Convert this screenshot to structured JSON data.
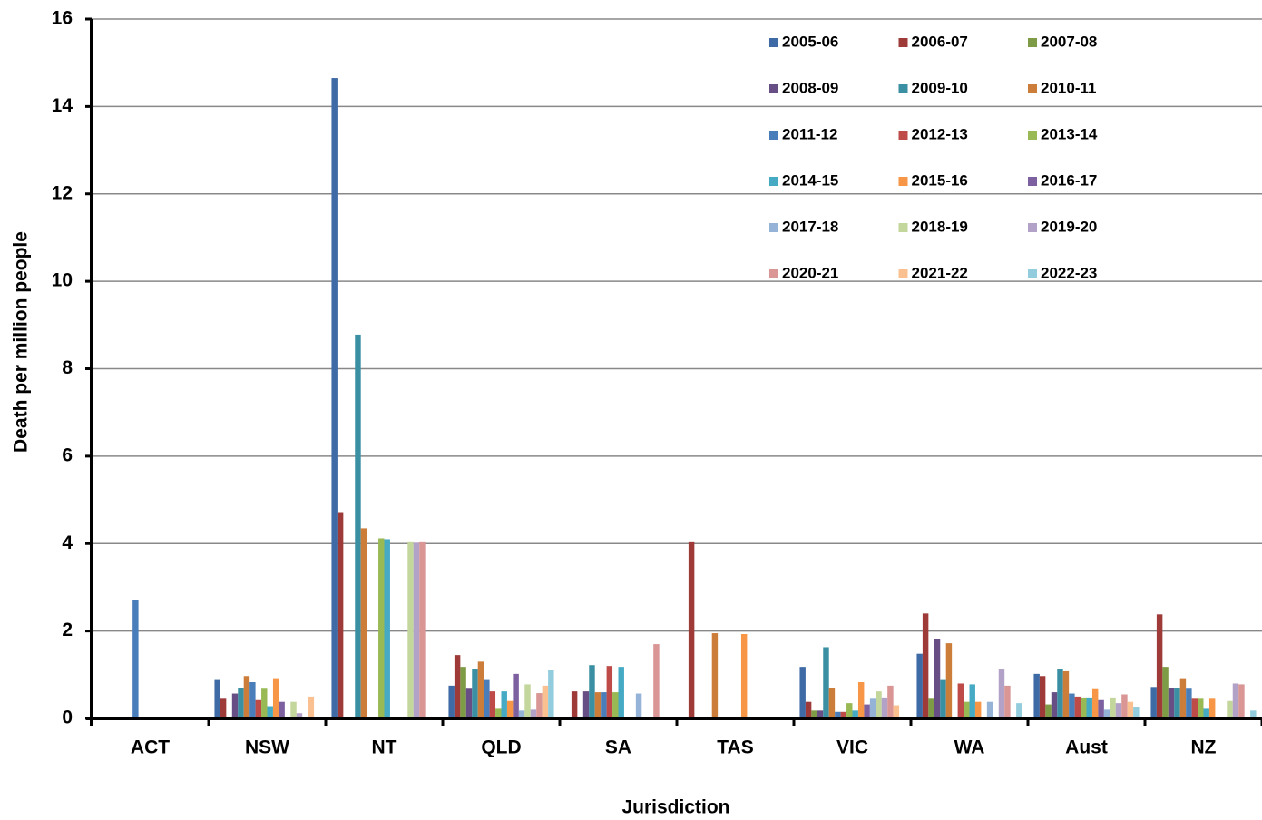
{
  "chart_data": {
    "type": "bar",
    "x_label": "Jurisdiction",
    "y_label": "Death per million people",
    "categories": [
      "ACT",
      "NSW",
      "NT",
      "QLD",
      "SA",
      "TAS",
      "VIC",
      "WA",
      "Aust",
      "NZ"
    ],
    "ylim": [
      0,
      16
    ],
    "yticks": [
      0,
      2,
      4,
      6,
      8,
      10,
      12,
      14,
      16
    ],
    "grid": true,
    "legend": "upper right",
    "series": [
      {
        "name": "2005-06",
        "color": "#3E6AA6",
        "values": [
          0,
          0.88,
          14.65,
          0.75,
          0,
          0,
          1.18,
          1.48,
          1.02,
          0.72
        ]
      },
      {
        "name": "2006-07",
        "color": "#9E3B39",
        "values": [
          0,
          0.45,
          4.7,
          1.45,
          0.62,
          4.05,
          0.38,
          2.4,
          0.97,
          2.38
        ]
      },
      {
        "name": "2007-08",
        "color": "#7E9B45",
        "values": [
          0,
          0,
          0,
          1.18,
          0,
          0,
          0.18,
          0.45,
          0.32,
          1.18
        ]
      },
      {
        "name": "2008-09",
        "color": "#674F85",
        "values": [
          0,
          0.57,
          0,
          0.68,
          0.62,
          0,
          0.18,
          1.82,
          0.6,
          0.7
        ]
      },
      {
        "name": "2009-10",
        "color": "#3A8FA3",
        "values": [
          0,
          0.7,
          8.78,
          1.12,
          1.22,
          0,
          1.63,
          0.88,
          1.12,
          0.7
        ]
      },
      {
        "name": "2010-11",
        "color": "#CC7D3A",
        "values": [
          0,
          0.97,
          4.35,
          1.3,
          0.6,
          1.95,
          0.7,
          1.72,
          1.08,
          0.9
        ]
      },
      {
        "name": "2011-12",
        "color": "#4A7EBB",
        "values": [
          2.7,
          0.83,
          0,
          0.88,
          0.6,
          0,
          0.15,
          0,
          0.57,
          0.68
        ]
      },
      {
        "name": "2012-13",
        "color": "#BE4B48",
        "values": [
          0,
          0.42,
          0,
          0.62,
          1.2,
          0,
          0.15,
          0.8,
          0.5,
          0.45
        ]
      },
      {
        "name": "2013-14",
        "color": "#98B954",
        "values": [
          0,
          0.68,
          4.12,
          0.22,
          0.6,
          0,
          0.35,
          0.38,
          0.48,
          0.45
        ]
      },
      {
        "name": "2014-15",
        "color": "#46AAC5",
        "values": [
          0,
          0.28,
          4.1,
          0.62,
          1.18,
          0,
          0.18,
          0.78,
          0.48,
          0.22
        ]
      },
      {
        "name": "2015-16",
        "color": "#F79646",
        "values": [
          0,
          0.9,
          0,
          0.4,
          0,
          1.93,
          0.83,
          0.38,
          0.67,
          0.45
        ]
      },
      {
        "name": "2016-17",
        "color": "#7D60A0",
        "values": [
          0,
          0.38,
          0,
          1.02,
          0,
          0,
          0.32,
          0,
          0.42,
          0
        ]
      },
      {
        "name": "2017-18",
        "color": "#95B3D7",
        "values": [
          0,
          0,
          0,
          0.18,
          0.57,
          0,
          0.45,
          0.38,
          0.2,
          0
        ]
      },
      {
        "name": "2018-19",
        "color": "#C3D69B",
        "values": [
          0,
          0.38,
          4.05,
          0.78,
          0,
          0,
          0.62,
          0,
          0.48,
          0.4
        ]
      },
      {
        "name": "2019-20",
        "color": "#B3A2C7",
        "values": [
          0,
          0.12,
          4.02,
          0.2,
          0,
          0,
          0.48,
          1.12,
          0.35,
          0.8
        ]
      },
      {
        "name": "2020-21",
        "color": "#D99694",
        "values": [
          0,
          0,
          4.05,
          0.58,
          1.7,
          0,
          0.75,
          0.75,
          0.55,
          0.78
        ]
      },
      {
        "name": "2021-22",
        "color": "#FAC090",
        "values": [
          0,
          0.5,
          0,
          0.75,
          0,
          0,
          0.3,
          0,
          0.38,
          0
        ]
      },
      {
        "name": "2022-23",
        "color": "#93CDDD",
        "values": [
          0,
          0,
          0,
          1.1,
          0,
          0,
          0,
          0.35,
          0.27,
          0.18
        ]
      }
    ]
  }
}
